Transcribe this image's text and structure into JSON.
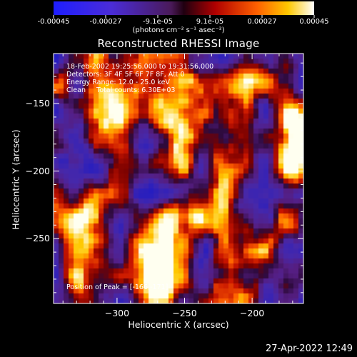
{
  "colorbar": {
    "tick_labels": [
      "-0.00045",
      "-0.00027",
      "-9.1e-05",
      "9.1e-05",
      "0.00027",
      "0.00045"
    ],
    "unit_label": "(photons cm⁻² s⁻¹ asec⁻²)",
    "range": [
      -0.00045,
      0.00045
    ]
  },
  "image_title": "Reconstructed RHESSI Image",
  "annotations": {
    "time": "18-Feb-2002 19:25:56.000 to 19:31:56.000",
    "detectors": "Detectors: 3F 4F 5F 6F 7F 8F, Att 0",
    "energy": "Energy Range: 12.0 - 25.0 keV",
    "method": "Clean     Total counts: 6.30E+03",
    "peak": "Position of Peak = [-166,-171]"
  },
  "footer_timestamp": "27-Apr-2022 12:49",
  "chart_data": {
    "type": "heatmap",
    "title": "Reconstructed RHESSI Image",
    "xlabel": "Heliocentric X (arcsec)",
    "ylabel": "Heliocentric Y (arcsec)",
    "xlim": [
      -347,
      -162
    ],
    "ylim": [
      -298,
      -113
    ],
    "x_ticks": [
      -300,
      -250,
      -200
    ],
    "y_ticks": [
      -150,
      -200,
      -250
    ],
    "x_tick_labels": [
      "−300",
      "−250",
      "−200"
    ],
    "y_tick_labels": [
      "−150",
      "−200",
      "−250"
    ],
    "grid": false,
    "colormap": "rhessi-blue-purple-red-yellow-white",
    "peak_position": [
      -166,
      -171
    ],
    "bright_sources": [
      {
        "x": -166,
        "y": -171,
        "level": 1.0
      },
      {
        "x": -272,
        "y": -283,
        "level": 0.9
      },
      {
        "x": -258,
        "y": -172,
        "level": 0.85
      },
      {
        "x": -253,
        "y": -232,
        "level": 0.8
      },
      {
        "x": -300,
        "y": -153,
        "level": 0.65
      },
      {
        "x": -223,
        "y": -298,
        "level": 0.75
      },
      {
        "x": -323,
        "y": -230,
        "level": 0.7
      }
    ]
  }
}
